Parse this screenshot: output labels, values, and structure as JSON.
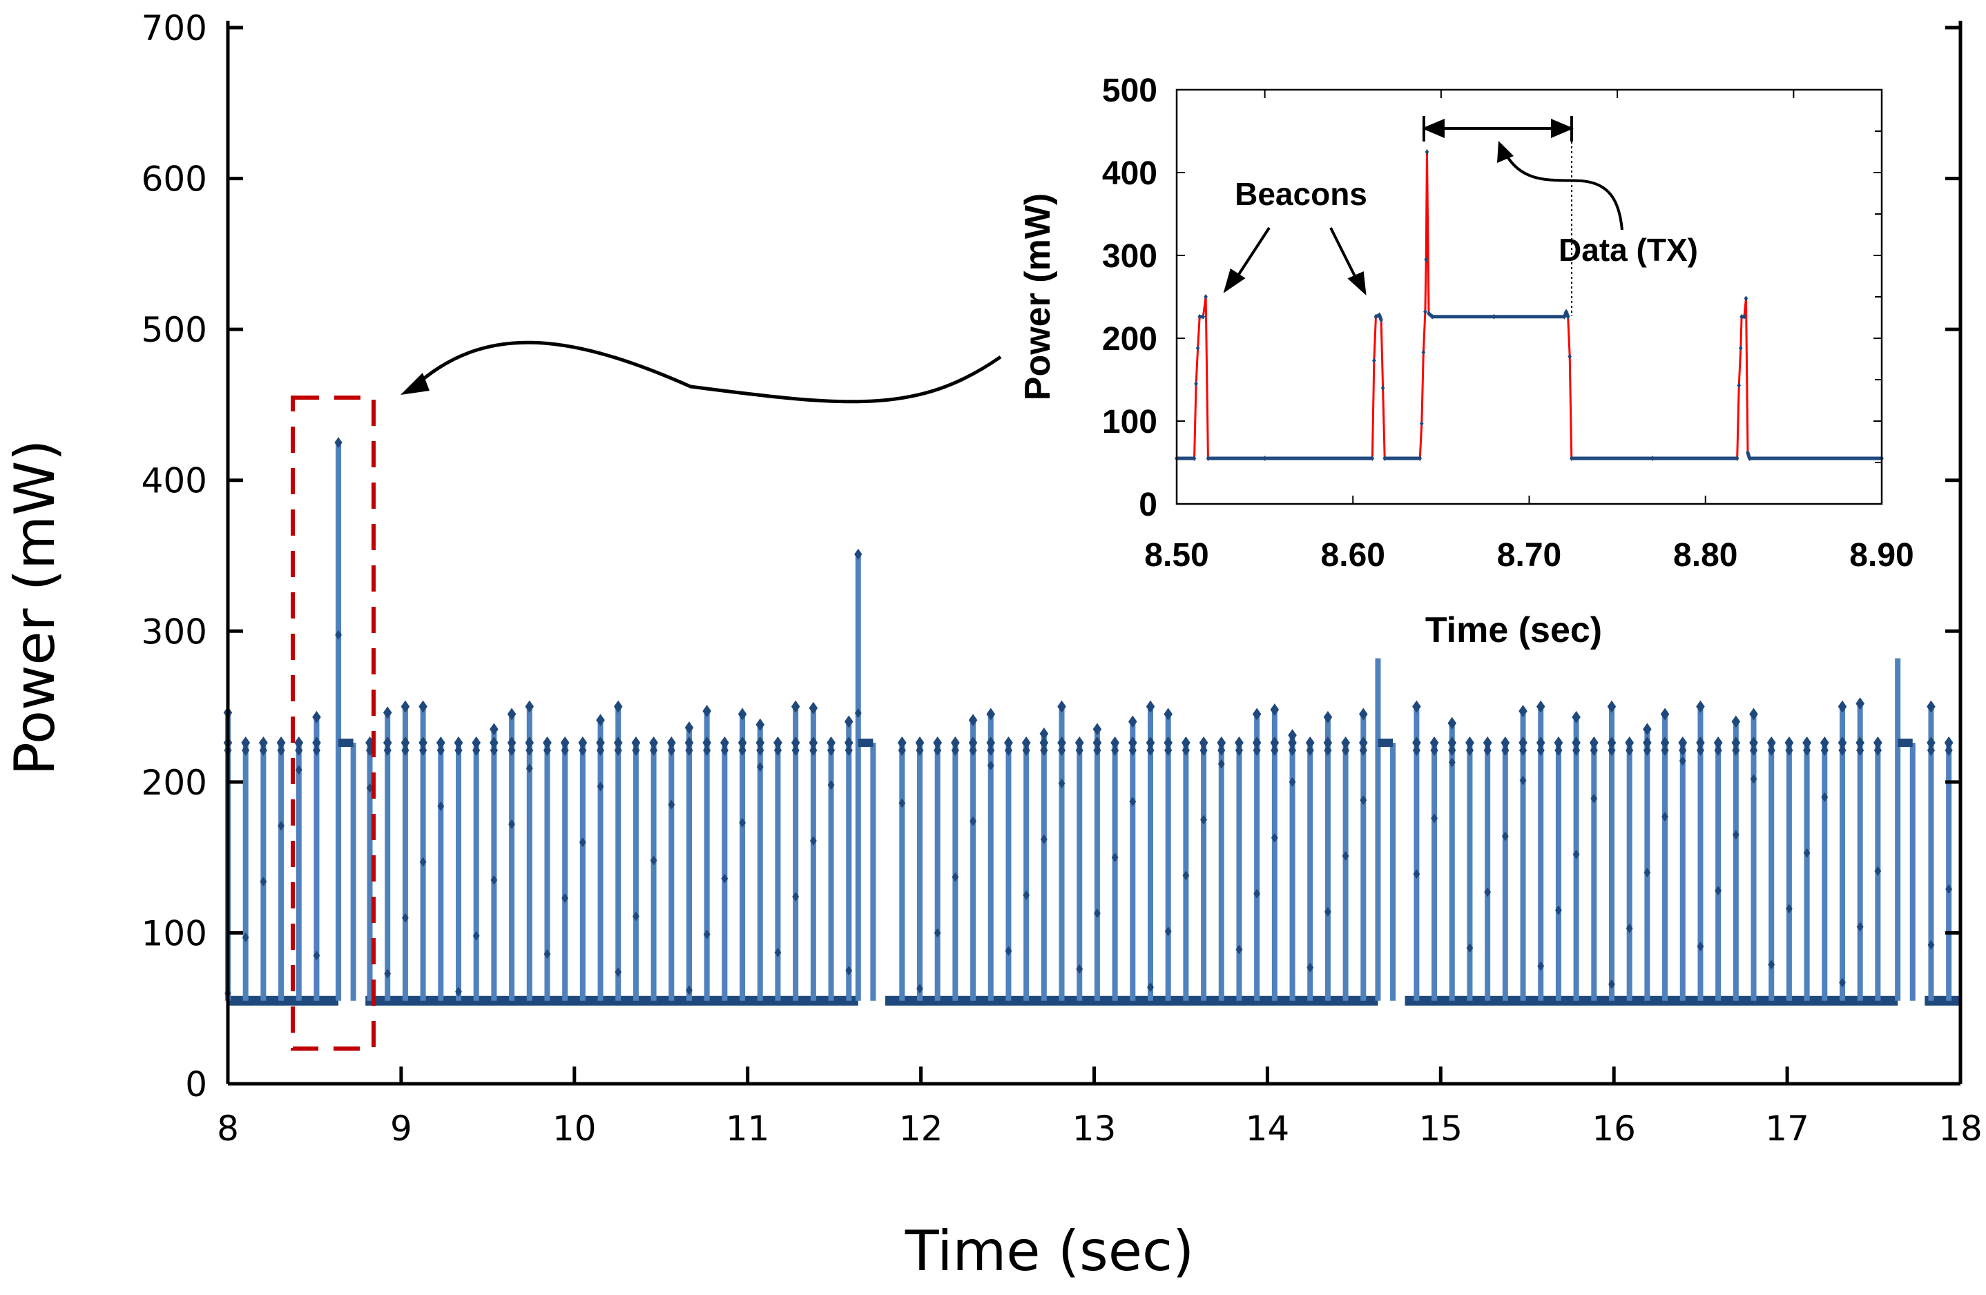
{
  "chart_data": [
    {
      "type": "line",
      "title": "",
      "xlabel": "Time (sec)",
      "ylabel": "Power (mW)",
      "xlim": [
        8,
        18
      ],
      "ylim": [
        0,
        700
      ],
      "xticks": [
        "8",
        "9",
        "10",
        "11",
        "12",
        "13",
        "14",
        "15",
        "16",
        "17",
        "18"
      ],
      "yticks": [
        "0",
        "100",
        "200",
        "300",
        "400",
        "500",
        "600",
        "700"
      ],
      "grid": false,
      "legend": "none",
      "colors": {
        "line": "#4f81bd",
        "marker": "#1f497d",
        "highlight_box": "#c00000"
      },
      "idle_level_mW": 55,
      "beacon_level_mW": 226,
      "beacon_interval_sec": 0.1024,
      "first_beacon_sec": 8.0,
      "beacon_peaks_mW": [
        246,
        226,
        226,
        226,
        226,
        243,
        250,
        226,
        226,
        246,
        250,
        250,
        226,
        226,
        226,
        235,
        245,
        250,
        226,
        226,
        226,
        241,
        250,
        226,
        226,
        226,
        236,
        247,
        226,
        245,
        238,
        226,
        250,
        249,
        226,
        240,
        232,
        250,
        226,
        226,
        226,
        226,
        241,
        245,
        226,
        226,
        232,
        250,
        226,
        235,
        226,
        240,
        250,
        245,
        226,
        226,
        226,
        226,
        245,
        248,
        231,
        226,
        243,
        226,
        245,
        226,
        246,
        250,
        226,
        239,
        226,
        226,
        226,
        247,
        250,
        226,
        243,
        226,
        250,
        226,
        235,
        245,
        226,
        250,
        226,
        240,
        245,
        226,
        226,
        226,
        226,
        250,
        252,
        226,
        226,
        245,
        250,
        226
      ],
      "data_bursts": [
        {
          "start_sec": 8.638,
          "end_sec": 8.724,
          "peak_mW": 425,
          "level_mW": 226
        },
        {
          "start_sec": 11.638,
          "end_sec": 11.724,
          "peak_mW": 351,
          "level_mW": 226
        },
        {
          "start_sec": 14.638,
          "end_sec": 14.724,
          "peak_mW": 282,
          "level_mW": 226
        },
        {
          "start_sec": 17.638,
          "end_sec": 17.724,
          "peak_mW": 282,
          "level_mW": 226
        }
      ],
      "highlight_region_sec": [
        8.38,
        8.85
      ]
    },
    {
      "type": "line",
      "title": "",
      "xlabel": "Time (sec)",
      "ylabel": "Power (mW)",
      "xlim": [
        8.5,
        8.9
      ],
      "ylim": [
        0,
        500
      ],
      "xticks": [
        "8.50",
        "8.60",
        "8.70",
        "8.80",
        "8.90"
      ],
      "yticks": [
        "0",
        "100",
        "200",
        "300",
        "400",
        "500"
      ],
      "grid": false,
      "colors": {
        "transition": "#ff0000",
        "steady": "#1f497d"
      },
      "x": [
        8.5,
        8.51,
        8.511,
        8.512,
        8.513,
        8.515,
        8.5165,
        8.5178,
        8.55,
        8.611,
        8.612,
        8.613,
        8.615,
        8.616,
        8.617,
        8.618,
        8.638,
        8.639,
        8.64,
        8.641,
        8.6415,
        8.642,
        8.643,
        8.645,
        8.68,
        8.72,
        8.721,
        8.722,
        8.723,
        8.724,
        8.77,
        8.818,
        8.819,
        8.82,
        8.8205,
        8.822,
        8.823,
        8.824,
        8.825,
        8.9
      ],
      "y": [
        55,
        55,
        145,
        188,
        226,
        226,
        250,
        55,
        55,
        55,
        173,
        226,
        228,
        222,
        140,
        55,
        55,
        97,
        183,
        232,
        295,
        425,
        230,
        226,
        226,
        226,
        232,
        226,
        178,
        55,
        55,
        55,
        143,
        188,
        226,
        226,
        248,
        62,
        55,
        55
      ],
      "annotations": {
        "beacons": "Beacons",
        "data": "Data (TX)"
      }
    }
  ]
}
